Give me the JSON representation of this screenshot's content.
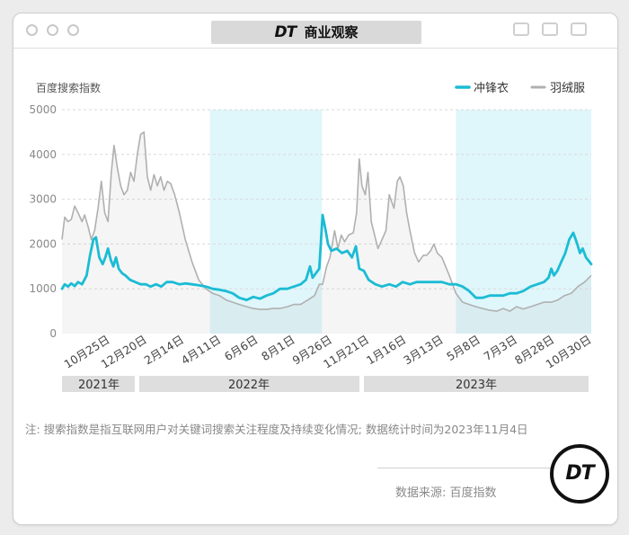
{
  "header": {
    "logo_text": "DT",
    "title": "商业观察"
  },
  "note": {
    "text": "注: 搜索指数是指互联网用户对关键词搜索关注程度及持续变化情况; 数据统计时间为2023年11月4日"
  },
  "source": {
    "text": "数据来源: 百度指数"
  },
  "badge": {
    "text": "DT"
  },
  "chart_data": {
    "type": "line",
    "ylabel": "百度搜索指数",
    "ylim": [
      0,
      5000
    ],
    "yticks": [
      "0",
      "1000",
      "2000",
      "3000",
      "4000",
      "5000"
    ],
    "x_ticks": [
      "10月25日",
      "12月20日",
      "2月14日",
      "4月11日",
      "6月6日",
      "8月1日",
      "9月26日",
      "11月21日",
      "1月16日",
      "3月13日",
      "5月8日",
      "7月3日",
      "8月28日",
      "10月30日"
    ],
    "years": [
      "2021年",
      "2022年",
      "2023年"
    ],
    "legend_position": "top-right",
    "shaded_periods": [
      [
        "2022-04-11",
        "2022-09-26"
      ],
      [
        "2023-04-15",
        "2023-11-04"
      ]
    ],
    "x_start": "2021-09-01",
    "x_end": "2023-11-04",
    "colors": {
      "jacket": "#1bbcd4",
      "down": "#b0b0b0",
      "shade": "#dff6fb"
    },
    "series": [
      {
        "name": "冲锋衣",
        "points": [
          [
            "2021-09-01",
            1000
          ],
          [
            "2021-09-05",
            1100
          ],
          [
            "2021-09-10",
            1050
          ],
          [
            "2021-09-15",
            1120
          ],
          [
            "2021-09-20",
            1060
          ],
          [
            "2021-09-25",
            1150
          ],
          [
            "2021-10-01",
            1100
          ],
          [
            "2021-10-08",
            1300
          ],
          [
            "2021-10-13",
            1750
          ],
          [
            "2021-10-18",
            2100
          ],
          [
            "2021-10-22",
            2150
          ],
          [
            "2021-10-27",
            1700
          ],
          [
            "2021-11-01",
            1550
          ],
          [
            "2021-11-05",
            1700
          ],
          [
            "2021-11-09",
            1900
          ],
          [
            "2021-11-13",
            1650
          ],
          [
            "2021-11-17",
            1500
          ],
          [
            "2021-11-21",
            1700
          ],
          [
            "2021-11-25",
            1450
          ],
          [
            "2021-11-30",
            1350
          ],
          [
            "2021-12-05",
            1300
          ],
          [
            "2021-12-12",
            1200
          ],
          [
            "2021-12-20",
            1150
          ],
          [
            "2021-12-28",
            1100
          ],
          [
            "2022-01-05",
            1100
          ],
          [
            "2022-01-12",
            1050
          ],
          [
            "2022-01-20",
            1100
          ],
          [
            "2022-01-28",
            1050
          ],
          [
            "2022-02-05",
            1150
          ],
          [
            "2022-02-14",
            1150
          ],
          [
            "2022-02-24",
            1100
          ],
          [
            "2022-03-05",
            1120
          ],
          [
            "2022-03-15",
            1100
          ],
          [
            "2022-03-25",
            1080
          ],
          [
            "2022-04-05",
            1050
          ],
          [
            "2022-04-15",
            1000
          ],
          [
            "2022-04-25",
            980
          ],
          [
            "2022-05-05",
            950
          ],
          [
            "2022-05-15",
            900
          ],
          [
            "2022-05-25",
            800
          ],
          [
            "2022-06-05",
            750
          ],
          [
            "2022-06-15",
            820
          ],
          [
            "2022-06-25",
            780
          ],
          [
            "2022-07-05",
            850
          ],
          [
            "2022-07-15",
            900
          ],
          [
            "2022-07-25",
            1000
          ],
          [
            "2022-08-05",
            1000
          ],
          [
            "2022-08-15",
            1050
          ],
          [
            "2022-08-25",
            1100
          ],
          [
            "2022-09-02",
            1200
          ],
          [
            "2022-09-08",
            1500
          ],
          [
            "2022-09-12",
            1250
          ],
          [
            "2022-09-17",
            1350
          ],
          [
            "2022-09-22",
            1450
          ],
          [
            "2022-09-27",
            2650
          ],
          [
            "2022-10-01",
            2350
          ],
          [
            "2022-10-05",
            2000
          ],
          [
            "2022-10-10",
            1850
          ],
          [
            "2022-10-18",
            1900
          ],
          [
            "2022-10-26",
            1800
          ],
          [
            "2022-11-03",
            1850
          ],
          [
            "2022-11-10",
            1700
          ],
          [
            "2022-11-16",
            1950
          ],
          [
            "2022-11-21",
            1450
          ],
          [
            "2022-11-28",
            1400
          ],
          [
            "2022-12-05",
            1200
          ],
          [
            "2022-12-15",
            1100
          ],
          [
            "2022-12-25",
            1050
          ],
          [
            "2023-01-05",
            1100
          ],
          [
            "2023-01-15",
            1050
          ],
          [
            "2023-01-25",
            1150
          ],
          [
            "2023-02-05",
            1100
          ],
          [
            "2023-02-15",
            1150
          ],
          [
            "2023-02-25",
            1150
          ],
          [
            "2023-03-05",
            1150
          ],
          [
            "2023-03-15",
            1150
          ],
          [
            "2023-03-25",
            1150
          ],
          [
            "2023-04-05",
            1100
          ],
          [
            "2023-04-15",
            1100
          ],
          [
            "2023-04-25",
            1050
          ],
          [
            "2023-05-05",
            950
          ],
          [
            "2023-05-15",
            800
          ],
          [
            "2023-05-25",
            800
          ],
          [
            "2023-06-05",
            850
          ],
          [
            "2023-06-15",
            850
          ],
          [
            "2023-06-25",
            850
          ],
          [
            "2023-07-05",
            900
          ],
          [
            "2023-07-15",
            900
          ],
          [
            "2023-07-25",
            950
          ],
          [
            "2023-08-05",
            1050
          ],
          [
            "2023-08-15",
            1100
          ],
          [
            "2023-08-25",
            1150
          ],
          [
            "2023-09-01",
            1250
          ],
          [
            "2023-09-05",
            1450
          ],
          [
            "2023-09-09",
            1300
          ],
          [
            "2023-09-14",
            1400
          ],
          [
            "2023-09-20",
            1600
          ],
          [
            "2023-09-26",
            1800
          ],
          [
            "2023-10-02",
            2100
          ],
          [
            "2023-10-08",
            2250
          ],
          [
            "2023-10-14",
            2000
          ],
          [
            "2023-10-18",
            1800
          ],
          [
            "2023-10-22",
            1900
          ],
          [
            "2023-10-27",
            1700
          ],
          [
            "2023-11-04",
            1550
          ]
        ]
      },
      {
        "name": "羽绒服",
        "points": [
          [
            "2021-09-01",
            2100
          ],
          [
            "2021-09-05",
            2600
          ],
          [
            "2021-09-10",
            2500
          ],
          [
            "2021-09-15",
            2550
          ],
          [
            "2021-09-20",
            2850
          ],
          [
            "2021-09-25",
            2700
          ],
          [
            "2021-10-01",
            2500
          ],
          [
            "2021-10-05",
            2650
          ],
          [
            "2021-10-10",
            2400
          ],
          [
            "2021-10-15",
            2100
          ],
          [
            "2021-10-20",
            2300
          ],
          [
            "2021-10-25",
            2800
          ],
          [
            "2021-10-30",
            3400
          ],
          [
            "2021-11-04",
            2700
          ],
          [
            "2021-11-09",
            2500
          ],
          [
            "2021-11-14",
            3600
          ],
          [
            "2021-11-18",
            4200
          ],
          [
            "2021-11-23",
            3700
          ],
          [
            "2021-11-28",
            3300
          ],
          [
            "2021-12-03",
            3100
          ],
          [
            "2021-12-08",
            3200
          ],
          [
            "2021-12-13",
            3600
          ],
          [
            "2021-12-18",
            3400
          ],
          [
            "2021-12-23",
            4000
          ],
          [
            "2021-12-28",
            4450
          ],
          [
            "2022-01-02",
            4500
          ],
          [
            "2022-01-07",
            3500
          ],
          [
            "2022-01-12",
            3200
          ],
          [
            "2022-01-17",
            3550
          ],
          [
            "2022-01-22",
            3300
          ],
          [
            "2022-01-27",
            3500
          ],
          [
            "2022-02-01",
            3200
          ],
          [
            "2022-02-06",
            3400
          ],
          [
            "2022-02-11",
            3350
          ],
          [
            "2022-02-17",
            3100
          ],
          [
            "2022-02-24",
            2700
          ],
          [
            "2022-03-05",
            2100
          ],
          [
            "2022-03-15",
            1600
          ],
          [
            "2022-03-25",
            1200
          ],
          [
            "2022-04-05",
            1000
          ],
          [
            "2022-04-15",
            900
          ],
          [
            "2022-04-25",
            850
          ],
          [
            "2022-05-05",
            750
          ],
          [
            "2022-05-15",
            700
          ],
          [
            "2022-05-25",
            650
          ],
          [
            "2022-06-05",
            600
          ],
          [
            "2022-06-15",
            560
          ],
          [
            "2022-06-25",
            540
          ],
          [
            "2022-07-05",
            540
          ],
          [
            "2022-07-15",
            560
          ],
          [
            "2022-07-25",
            560
          ],
          [
            "2022-08-05",
            600
          ],
          [
            "2022-08-15",
            650
          ],
          [
            "2022-08-25",
            650
          ],
          [
            "2022-09-05",
            750
          ],
          [
            "2022-09-15",
            850
          ],
          [
            "2022-09-22",
            1100
          ],
          [
            "2022-09-27",
            1100
          ],
          [
            "2022-10-03",
            1500
          ],
          [
            "2022-10-08",
            1700
          ],
          [
            "2022-10-15",
            2300
          ],
          [
            "2022-10-20",
            1900
          ],
          [
            "2022-10-25",
            2200
          ],
          [
            "2022-10-30",
            2050
          ],
          [
            "2022-11-05",
            2200
          ],
          [
            "2022-11-12",
            2250
          ],
          [
            "2022-11-17",
            2700
          ],
          [
            "2022-11-21",
            3900
          ],
          [
            "2022-11-25",
            3300
          ],
          [
            "2022-11-30",
            3100
          ],
          [
            "2022-12-04",
            3600
          ],
          [
            "2022-12-09",
            2500
          ],
          [
            "2022-12-14",
            2200
          ],
          [
            "2022-12-19",
            1900
          ],
          [
            "2022-12-25",
            2100
          ],
          [
            "2022-12-31",
            2300
          ],
          [
            "2023-01-05",
            3100
          ],
          [
            "2023-01-12",
            2800
          ],
          [
            "2023-01-17",
            3400
          ],
          [
            "2023-01-21",
            3500
          ],
          [
            "2023-01-26",
            3300
          ],
          [
            "2023-01-31",
            2700
          ],
          [
            "2023-02-05",
            2300
          ],
          [
            "2023-02-12",
            1800
          ],
          [
            "2023-02-18",
            1600
          ],
          [
            "2023-02-25",
            1750
          ],
          [
            "2023-03-02",
            1750
          ],
          [
            "2023-03-08",
            1850
          ],
          [
            "2023-03-13",
            2000
          ],
          [
            "2023-03-18",
            1800
          ],
          [
            "2023-03-25",
            1700
          ],
          [
            "2023-04-05",
            1300
          ],
          [
            "2023-04-15",
            900
          ],
          [
            "2023-04-25",
            700
          ],
          [
            "2023-05-05",
            650
          ],
          [
            "2023-05-15",
            600
          ],
          [
            "2023-05-25",
            560
          ],
          [
            "2023-06-05",
            520
          ],
          [
            "2023-06-15",
            500
          ],
          [
            "2023-06-25",
            560
          ],
          [
            "2023-07-05",
            500
          ],
          [
            "2023-07-15",
            600
          ],
          [
            "2023-07-25",
            550
          ],
          [
            "2023-08-05",
            600
          ],
          [
            "2023-08-15",
            650
          ],
          [
            "2023-08-25",
            700
          ],
          [
            "2023-09-05",
            700
          ],
          [
            "2023-09-15",
            750
          ],
          [
            "2023-09-25",
            850
          ],
          [
            "2023-10-05",
            900
          ],
          [
            "2023-10-15",
            1050
          ],
          [
            "2023-10-25",
            1150
          ],
          [
            "2023-11-04",
            1300
          ]
        ]
      }
    ]
  }
}
